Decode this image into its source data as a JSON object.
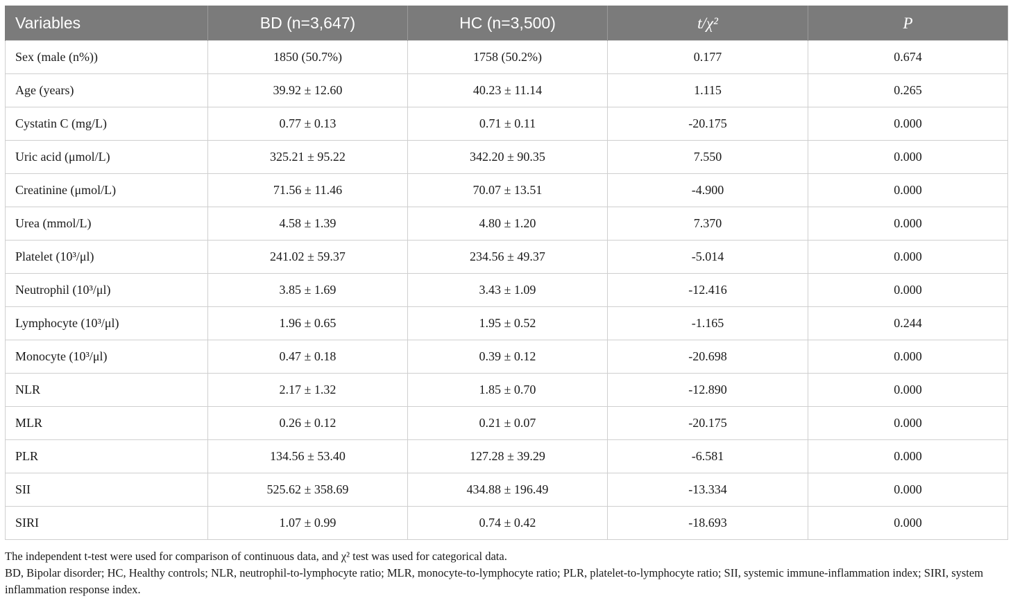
{
  "table": {
    "headers": [
      "Variables",
      "BD (n=3,647)",
      "HC (n=3,500)",
      "t/χ²",
      "P"
    ],
    "rows": [
      [
        "Sex (male (n%))",
        "1850 (50.7%)",
        "1758 (50.2%)",
        "0.177",
        "0.674"
      ],
      [
        "Age (years)",
        "39.92 ± 12.60",
        "40.23 ± 11.14",
        "1.115",
        "0.265"
      ],
      [
        "Cystatin C (mg/L)",
        "0.77 ± 0.13",
        "0.71 ± 0.11",
        "-20.175",
        "0.000"
      ],
      [
        "Uric acid (μmol/L)",
        "325.21 ± 95.22",
        "342.20 ± 90.35",
        "7.550",
        "0.000"
      ],
      [
        "Creatinine (μmol/L)",
        "71.56 ± 11.46",
        "70.07 ± 13.51",
        "-4.900",
        "0.000"
      ],
      [
        "Urea (mmol/L)",
        "4.58 ± 1.39",
        "4.80 ± 1.20",
        "7.370",
        "0.000"
      ],
      [
        "Platelet (10³/μl)",
        "241.02 ± 59.37",
        "234.56 ± 49.37",
        "-5.014",
        "0.000"
      ],
      [
        "Neutrophil (10³/μl)",
        "3.85 ± 1.69",
        "3.43 ± 1.09",
        "-12.416",
        "0.000"
      ],
      [
        "Lymphocyte (10³/μl)",
        "1.96 ± 0.65",
        "1.95 ± 0.52",
        "-1.165",
        "0.244"
      ],
      [
        "Monocyte (10³/μl)",
        "0.47 ± 0.18",
        "0.39 ± 0.12",
        "-20.698",
        "0.000"
      ],
      [
        "NLR",
        "2.17 ± 1.32",
        "1.85 ± 0.70",
        "-12.890",
        "0.000"
      ],
      [
        "MLR",
        "0.26 ± 0.12",
        "0.21 ± 0.07",
        "-20.175",
        "0.000"
      ],
      [
        "PLR",
        "134.56 ± 53.40",
        "127.28 ± 39.29",
        "-6.581",
        "0.000"
      ],
      [
        "SII",
        "525.62 ± 358.69",
        "434.88 ± 196.49",
        "-13.334",
        "0.000"
      ],
      [
        "SIRI",
        "1.07 ± 0.99",
        "0.74 ± 0.42",
        "-18.693",
        "0.000"
      ]
    ]
  },
  "notes": {
    "line1": "The independent t-test were used for comparison of continuous data, and χ² test was used for categorical data.",
    "line2": "BD, Bipolar disorder; HC, Healthy controls; NLR, neutrophil-to-lymphocyte ratio; MLR, monocyte-to-lymphocyte ratio; PLR, platelet-to-lymphocyte ratio; SII, systemic immune-inflammation index; SIRI, system inflammation response index."
  }
}
